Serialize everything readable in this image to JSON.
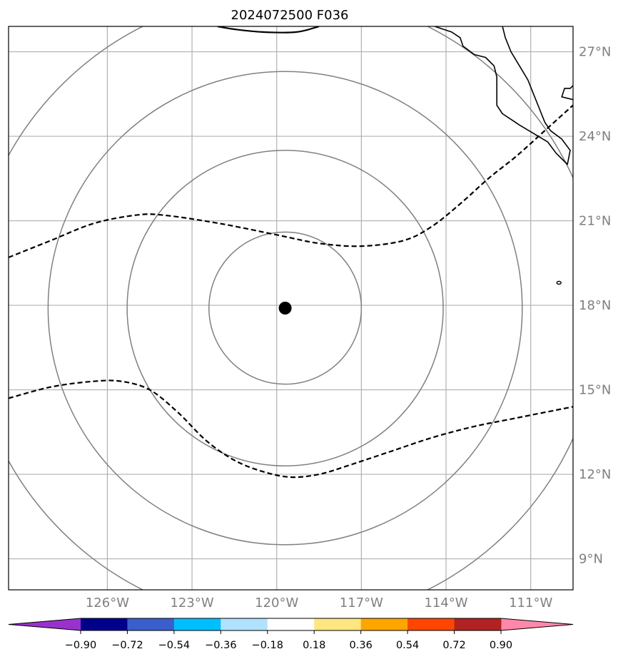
{
  "title": "2024072500 F036",
  "map": {
    "lon_range": [
      -129.5,
      -109.5
    ],
    "lat_range": [
      7.9,
      27.9
    ],
    "lon_ticks": [
      -126,
      -123,
      -120,
      -117,
      -114,
      -111
    ],
    "lon_labels": [
      "126°W",
      "123°W",
      "120°W",
      "117°W",
      "114°W",
      "111°W"
    ],
    "lat_ticks": [
      9,
      12,
      15,
      18,
      21,
      24,
      27
    ],
    "lat_labels": [
      "9°N",
      "12°N",
      "15°N",
      "18°N",
      "21°N",
      "24°N",
      "27°N"
    ],
    "gridlines": true,
    "center": {
      "lon": -119.7,
      "lat": 17.9
    },
    "range_rings_deg": [
      2.7,
      5.6,
      8.4,
      11.2
    ],
    "colors": {
      "grid": "#b0b0b0",
      "rings": "#808080",
      "coast": "#000000",
      "contour": "#000000",
      "center_marker": "#000000"
    },
    "contours": [
      {
        "style": "dashed",
        "points": [
          [
            -129.5,
            19.7
          ],
          [
            -128,
            20.3
          ],
          [
            -126.5,
            20.9
          ],
          [
            -125,
            21.2
          ],
          [
            -124,
            21.2
          ],
          [
            -122,
            20.9
          ],
          [
            -120,
            20.5
          ],
          [
            -118.5,
            20.2
          ],
          [
            -117,
            20.1
          ],
          [
            -115.5,
            20.3
          ],
          [
            -114.5,
            20.8
          ],
          [
            -113.5,
            21.6
          ],
          [
            -112.5,
            22.5
          ],
          [
            -111.5,
            23.3
          ],
          [
            -110.5,
            24.2
          ],
          [
            -109.5,
            25.1
          ]
        ]
      },
      {
        "style": "dashed",
        "points": [
          [
            -129.5,
            14.7
          ],
          [
            -128,
            15.1
          ],
          [
            -126.5,
            15.3
          ],
          [
            -125.5,
            15.3
          ],
          [
            -124.5,
            15.0
          ],
          [
            -123.5,
            14.2
          ],
          [
            -122.5,
            13.2
          ],
          [
            -121.5,
            12.5
          ],
          [
            -120.5,
            12.1
          ],
          [
            -119.5,
            11.9
          ],
          [
            -118.5,
            12.0
          ],
          [
            -117.5,
            12.3
          ],
          [
            -116,
            12.8
          ],
          [
            -114.5,
            13.3
          ],
          [
            -113,
            13.7
          ],
          [
            -111.5,
            14.0
          ],
          [
            -109.5,
            14.4
          ]
        ]
      },
      {
        "style": "solid",
        "points": [
          [
            -122.1,
            27.9
          ],
          [
            -121.5,
            27.8
          ],
          [
            -120.5,
            27.7
          ],
          [
            -119.3,
            27.7
          ],
          [
            -118.5,
            27.9
          ]
        ]
      }
    ],
    "coastline": [
      [
        -114.4,
        27.9
      ],
      [
        -114.1,
        27.8
      ],
      [
        -113.8,
        27.7
      ],
      [
        -113.5,
        27.5
      ],
      [
        -113.4,
        27.2
      ],
      [
        -113.0,
        26.9
      ],
      [
        -112.6,
        26.8
      ],
      [
        -112.3,
        26.5
      ],
      [
        -112.2,
        26.1
      ],
      [
        -112.2,
        25.6
      ],
      [
        -112.2,
        25.1
      ],
      [
        -112.0,
        24.8
      ],
      [
        -111.7,
        24.6
      ],
      [
        -111.4,
        24.4
      ],
      [
        -110.9,
        24.1
      ],
      [
        -110.4,
        23.8
      ],
      [
        -110.1,
        23.4
      ],
      [
        -109.7,
        23.0
      ],
      [
        -109.6,
        23.5
      ],
      [
        -109.9,
        23.9
      ],
      [
        -110.3,
        24.2
      ],
      [
        -110.5,
        24.5
      ],
      [
        -110.7,
        25.0
      ],
      [
        -110.9,
        25.5
      ],
      [
        -111.1,
        26.0
      ],
      [
        -111.4,
        26.5
      ],
      [
        -111.7,
        27.0
      ],
      [
        -111.9,
        27.5
      ],
      [
        -112.0,
        27.9
      ]
    ],
    "coastline2": [
      [
        -109.5,
        25.8
      ],
      [
        -109.6,
        25.7
      ],
      [
        -109.8,
        25.7
      ],
      [
        -109.9,
        25.4
      ],
      [
        -109.5,
        25.3
      ]
    ],
    "island": {
      "lon": -110.0,
      "lat": 18.8
    }
  },
  "colorbar": {
    "tick_values": [
      -0.9,
      -0.72,
      -0.54,
      -0.36,
      -0.18,
      0.18,
      0.36,
      0.54,
      0.72,
      0.9
    ],
    "tick_labels": [
      "−0.90",
      "−0.72",
      "−0.54",
      "−0.36",
      "−0.18",
      "0.18",
      "0.36",
      "0.54",
      "0.72",
      "0.90"
    ],
    "under_color": "#9932cc",
    "over_color": "#ff88aa",
    "colors": [
      "#00008b",
      "#3a5fcd",
      "#00bfff",
      "#b0e2ff",
      "#ffffff",
      "#ffe680",
      "#ffa500",
      "#ff4500",
      "#b22222"
    ]
  }
}
